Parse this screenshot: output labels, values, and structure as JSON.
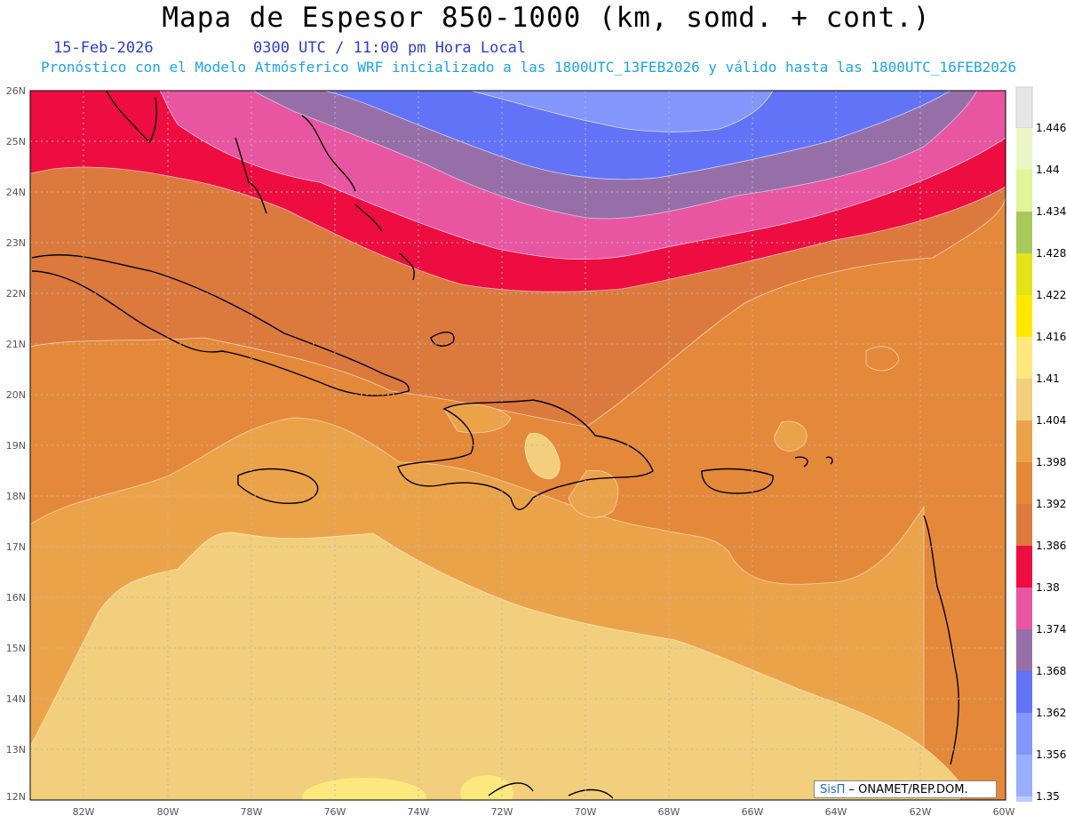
{
  "header": {
    "title": "Mapa de Espesor 850-1000 (km, somd. + cont.)",
    "date": "15-Feb-2026",
    "time": "0300 UTC / 11:00 pm Hora Local",
    "model_line": "Pronóstico con el Modelo Atmósferico WRF inicializado a las 1800UTC_13FEB2026 y válido hasta las  1800UTC_16FEB2026"
  },
  "map": {
    "lon_range": [
      -83,
      -60
    ],
    "lat_range": [
      12,
      26
    ],
    "lon_ticks": [
      "82W",
      "80W",
      "78W",
      "76W",
      "74W",
      "72W",
      "70W",
      "68W",
      "66W",
      "64W",
      "62W",
      "60W"
    ],
    "lat_ticks": [
      "26N",
      "25N",
      "24N",
      "23N",
      "22N",
      "21N",
      "20N",
      "19N",
      "18N",
      "17N",
      "16N",
      "15N",
      "14N",
      "13N",
      "12N"
    ]
  },
  "colorbar": {
    "levels": [
      "1.446",
      "1.44",
      "1.434",
      "1.428",
      "1.422",
      "1.416",
      "1.41",
      "1.404",
      "1.398",
      "1.392",
      "1.386",
      "1.38",
      "1.374",
      "1.368",
      "1.362",
      "1.356",
      "1.35"
    ],
    "colors": {
      "c1_350": "#bccbff",
      "c1_356": "#9aaefc",
      "c1_362": "#8296fb",
      "c1_368": "#6373f7",
      "c1_374": "#976fa8",
      "c1_380": "#e856a2",
      "c1_386": "#ee0d40",
      "c1_392": "#dc7a3e",
      "c1_398": "#e4893a",
      "c1_404": "#eba34a",
      "c1_410": "#f2cf7c",
      "c1_416": "#fbe97d",
      "c1_422": "#ffe800",
      "c1_428": "#e3e418",
      "c1_434": "#a8c95a",
      "c1_440": "#e2f399",
      "c1_446": "#ecf5c5",
      "top": "#e6e6e6"
    }
  },
  "credit": {
    "brand": "SisΠ",
    "text": " – ONAMET/REP.DOM."
  }
}
